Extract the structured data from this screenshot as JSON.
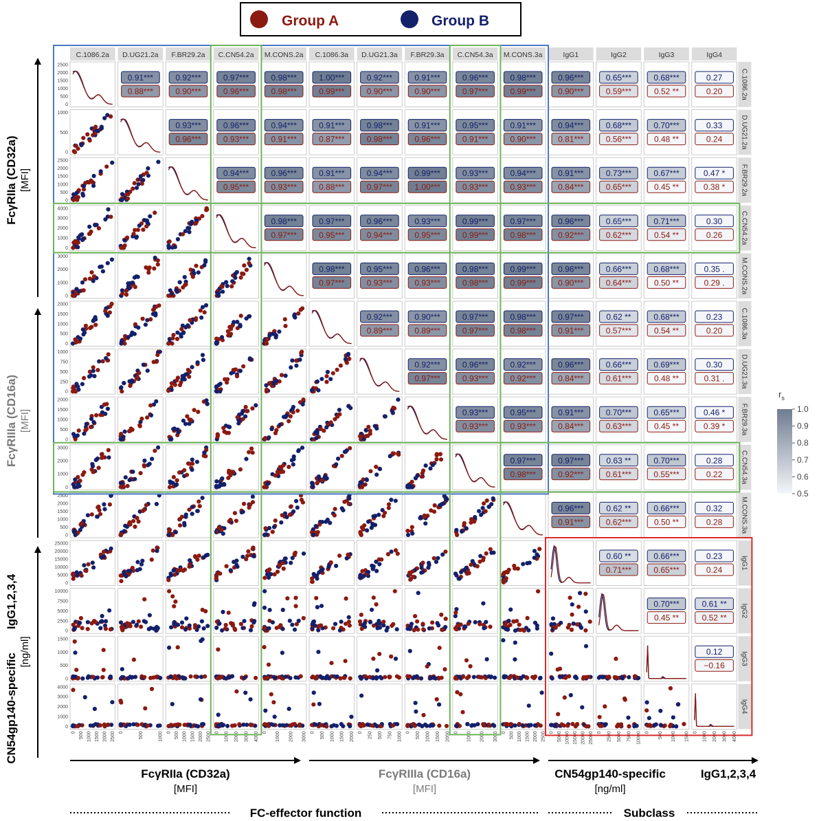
{
  "legend": {
    "items": [
      {
        "label": "Group A",
        "color": "#8b1a10"
      },
      {
        "label": "Group B",
        "color": "#13206b"
      }
    ]
  },
  "colors": {
    "group_a": "#8b1a10",
    "group_b": "#13206b",
    "gray_axis": "#7a7a7a",
    "green_box": "#6db55a",
    "blue_box": "#4a78c8",
    "red_box": "#d92a2a"
  },
  "variables": [
    "C.1086.2a",
    "D.UG21.2a",
    "F.BR29.2a",
    "C.CN54.2a",
    "M.CONS.2a",
    "C.1086.3a",
    "D.UG21.3a",
    "F.BR29.3a",
    "C.CN54.3a",
    "M.CONS.3a",
    "IgG1",
    "IgG2",
    "IgG3",
    "IgG4"
  ],
  "row_axis_ticks": [
    [
      "0",
      "500",
      "1000",
      "1500",
      "2000",
      "2500"
    ],
    [
      "0",
      "500",
      "1000"
    ],
    [
      "0",
      "500",
      "1000",
      "1500",
      "2000",
      "2500"
    ],
    [
      "0",
      "1000",
      "2000",
      "3000",
      "4000"
    ],
    [
      "0",
      "1000",
      "2000",
      "3000"
    ],
    [
      "0",
      "500",
      "1000",
      "1500",
      "2000"
    ],
    [
      "0",
      "250",
      "500",
      "750",
      "1000"
    ],
    [
      "0",
      "500",
      "1000",
      "1500",
      "2000"
    ],
    [
      "0",
      "1000",
      "2000",
      "3000"
    ],
    [
      "0",
      "500",
      "1000",
      "1500",
      "2000",
      "2500"
    ],
    [
      "0",
      "5000",
      "10000",
      "15000",
      "20000",
      "25000"
    ],
    [
      "0",
      "2500",
      "5000",
      "7500",
      "10000"
    ],
    [
      "0",
      "500",
      "1000",
      "1500"
    ],
    [
      "0",
      "1000",
      "2000",
      "3000",
      "4000"
    ]
  ],
  "col_axis_ticks": [
    [
      "0",
      "500",
      "1000",
      "1500",
      "2000",
      "2500"
    ],
    [
      "0",
      "500",
      "1000"
    ],
    [
      "0",
      "500",
      "1000",
      "1500",
      "2000",
      "2500"
    ],
    [
      "0",
      "1000",
      "2000",
      "3000",
      "4000"
    ],
    [
      "0",
      "1000",
      "2000",
      "3000"
    ],
    [
      "0",
      "500",
      "1000",
      "1500",
      "2000"
    ],
    [
      "0",
      "250",
      "500",
      "750",
      "1000"
    ],
    [
      "0",
      "500",
      "1000",
      "1500",
      "2000"
    ],
    [
      "0",
      "1000",
      "2000",
      "3000"
    ],
    [
      "0",
      "500",
      "1000",
      "1500",
      "2000",
      "2500"
    ],
    [
      "0",
      "5000",
      "10000",
      "15000",
      "20000",
      "25000"
    ],
    [
      "0",
      "2500",
      "5000",
      "7500",
      "10000"
    ],
    [
      "0",
      "500",
      "1000",
      "1500"
    ],
    [
      "0",
      "1000",
      "2000",
      "3000",
      "4000"
    ]
  ],
  "chart_data": {
    "type": "scatter",
    "title": "",
    "colorbar": {
      "title": "r_s",
      "ticks": [
        "1.0",
        "0.9",
        "0.8",
        "0.7",
        "0.6",
        "0.5"
      ],
      "range": [
        0.5,
        1.0
      ]
    },
    "correlations": {
      "C.1086.2a|D.UG21.2a": {
        "B": "0.91***",
        "A": "0.88***"
      },
      "C.1086.2a|F.BR29.2a": {
        "B": "0.92***",
        "A": "0.90***"
      },
      "C.1086.2a|C.CN54.2a": {
        "B": "0.97***",
        "A": "0.96***"
      },
      "C.1086.2a|M.CONS.2a": {
        "B": "0.98***",
        "A": "0.98***"
      },
      "C.1086.2a|C.1086.3a": {
        "B": "1.00***",
        "A": "0.99***"
      },
      "C.1086.2a|D.UG21.3a": {
        "B": "0.92***",
        "A": "0.90***"
      },
      "C.1086.2a|F.BR29.3a": {
        "B": "0.91***",
        "A": "0.90***"
      },
      "C.1086.2a|C.CN54.3a": {
        "B": "0.96***",
        "A": "0.97***"
      },
      "C.1086.2a|M.CONS.3a": {
        "B": "0.98***",
        "A": "0.99***"
      },
      "C.1086.2a|IgG1": {
        "B": "0.96***",
        "A": "0.90***"
      },
      "C.1086.2a|IgG2": {
        "B": "0.65***",
        "A": "0.59***"
      },
      "C.1086.2a|IgG3": {
        "B": "0.68***",
        "A": "0.52 **"
      },
      "C.1086.2a|IgG4": {
        "B": "0.27",
        "A": "0.20"
      },
      "D.UG21.2a|F.BR29.2a": {
        "B": "0.93***",
        "A": "0.96***"
      },
      "D.UG21.2a|C.CN54.2a": {
        "B": "0.96***",
        "A": "0.93***"
      },
      "D.UG21.2a|M.CONS.2a": {
        "B": "0.94***",
        "A": "0.91***"
      },
      "D.UG21.2a|C.1086.3a": {
        "B": "0.91***",
        "A": "0.87***"
      },
      "D.UG21.2a|D.UG21.3a": {
        "B": "0.98***",
        "A": "0.98***"
      },
      "D.UG21.2a|F.BR29.3a": {
        "B": "0.91***",
        "A": "0.96***"
      },
      "D.UG21.2a|C.CN54.3a": {
        "B": "0.95***",
        "A": "0.91***"
      },
      "D.UG21.2a|M.CONS.3a": {
        "B": "0.91***",
        "A": "0.90***"
      },
      "D.UG21.2a|IgG1": {
        "B": "0.94***",
        "A": "0.81***"
      },
      "D.UG21.2a|IgG2": {
        "B": "0.68***",
        "A": "0.56***"
      },
      "D.UG21.2a|IgG3": {
        "B": "0.70***",
        "A": "0.48 **"
      },
      "D.UG21.2a|IgG4": {
        "B": "0.33",
        "A": "0.24"
      },
      "F.BR29.2a|C.CN54.2a": {
        "B": "0.94***",
        "A": "0.95***"
      },
      "F.BR29.2a|M.CONS.2a": {
        "B": "0.96***",
        "A": "0.93***"
      },
      "F.BR29.2a|C.1086.3a": {
        "B": "0.91***",
        "A": "0.88***"
      },
      "F.BR29.2a|D.UG21.3a": {
        "B": "0.94***",
        "A": "0.97***"
      },
      "F.BR29.2a|F.BR29.3a": {
        "B": "0.99***",
        "A": "1.00***"
      },
      "F.BR29.2a|C.CN54.3a": {
        "B": "0.93***",
        "A": "0.93***"
      },
      "F.BR29.2a|M.CONS.3a": {
        "B": "0.94***",
        "A": "0.93***"
      },
      "F.BR29.2a|IgG1": {
        "B": "0.91***",
        "A": "0.84***"
      },
      "F.BR29.2a|IgG2": {
        "B": "0.73***",
        "A": "0.65***"
      },
      "F.BR29.2a|IgG3": {
        "B": "0.67***",
        "A": "0.45 **"
      },
      "F.BR29.2a|IgG4": {
        "B": "0.47  *",
        "A": "0.38  *"
      },
      "C.CN54.2a|M.CONS.2a": {
        "B": "0.98***",
        "A": "0.97***"
      },
      "C.CN54.2a|C.1086.3a": {
        "B": "0.97***",
        "A": "0.95***"
      },
      "C.CN54.2a|D.UG21.3a": {
        "B": "0.96***",
        "A": "0.94***"
      },
      "C.CN54.2a|F.BR29.3a": {
        "B": "0.93***",
        "A": "0.95***"
      },
      "C.CN54.2a|C.CN54.3a": {
        "B": "0.99***",
        "A": "0.99***"
      },
      "C.CN54.2a|M.CONS.3a": {
        "B": "0.97***",
        "A": "0.98***"
      },
      "C.CN54.2a|IgG1": {
        "B": "0.96***",
        "A": "0.92***"
      },
      "C.CN54.2a|IgG2": {
        "B": "0.65***",
        "A": "0.62***"
      },
      "C.CN54.2a|IgG3": {
        "B": "0.71***",
        "A": "0.54 **"
      },
      "C.CN54.2a|IgG4": {
        "B": "0.30",
        "A": "0.26"
      },
      "M.CONS.2a|C.1086.3a": {
        "B": "0.98***",
        "A": "0.97***"
      },
      "M.CONS.2a|D.UG21.3a": {
        "B": "0.95***",
        "A": "0.93***"
      },
      "M.CONS.2a|F.BR29.3a": {
        "B": "0.96***",
        "A": "0.93***"
      },
      "M.CONS.2a|C.CN54.3a": {
        "B": "0.98***",
        "A": "0.98***"
      },
      "M.CONS.2a|M.CONS.3a": {
        "B": "0.99***",
        "A": "0.99***"
      },
      "M.CONS.2a|IgG1": {
        "B": "0.96***",
        "A": "0.90***"
      },
      "M.CONS.2a|IgG2": {
        "B": "0.66***",
        "A": "0.64***"
      },
      "M.CONS.2a|IgG3": {
        "B": "0.68***",
        "A": "0.50 **"
      },
      "M.CONS.2a|IgG4": {
        "B": "0.35  .",
        "A": "0.29  ."
      },
      "C.1086.3a|D.UG21.3a": {
        "B": "0.92***",
        "A": "0.89***"
      },
      "C.1086.3a|F.BR29.3a": {
        "B": "0.90***",
        "A": "0.89***"
      },
      "C.1086.3a|C.CN54.3a": {
        "B": "0.97***",
        "A": "0.97***"
      },
      "C.1086.3a|M.CONS.3a": {
        "B": "0.98***",
        "A": "0.98***"
      },
      "C.1086.3a|IgG1": {
        "B": "0.97***",
        "A": "0.91***"
      },
      "C.1086.3a|IgG2": {
        "B": "0.62 **",
        "A": "0.57***"
      },
      "C.1086.3a|IgG3": {
        "B": "0.68***",
        "A": "0.54 **"
      },
      "C.1086.3a|IgG4": {
        "B": "0.23",
        "A": "0.20"
      },
      "D.UG21.3a|F.BR29.3a": {
        "B": "0.92***",
        "A": "0.97***"
      },
      "D.UG21.3a|C.CN54.3a": {
        "B": "0.96***",
        "A": "0.93***"
      },
      "D.UG21.3a|M.CONS.3a": {
        "B": "0.92***",
        "A": "0.92***"
      },
      "D.UG21.3a|IgG1": {
        "B": "0.96***",
        "A": "0.84***"
      },
      "D.UG21.3a|IgG2": {
        "B": "0.66***",
        "A": "0.61***"
      },
      "D.UG21.3a|IgG3": {
        "B": "0.69***",
        "A": "0.48 **"
      },
      "D.UG21.3a|IgG4": {
        "B": "0.30",
        "A": "0.31  ."
      },
      "F.BR29.3a|C.CN54.3a": {
        "B": "0.93***",
        "A": "0.93***"
      },
      "F.BR29.3a|M.CONS.3a": {
        "B": "0.95***",
        "A": "0.93***"
      },
      "F.BR29.3a|IgG1": {
        "B": "0.91***",
        "A": "0.84***"
      },
      "F.BR29.3a|IgG2": {
        "B": "0.70***",
        "A": "0.63***"
      },
      "F.BR29.3a|IgG3": {
        "B": "0.65***",
        "A": "0.45 **"
      },
      "F.BR29.3a|IgG4": {
        "B": "0.46  *",
        "A": "0.39  *"
      },
      "C.CN54.3a|M.CONS.3a": {
        "B": "0.97***",
        "A": "0.98***"
      },
      "C.CN54.3a|IgG1": {
        "B": "0.97***",
        "A": "0.92***"
      },
      "C.CN54.3a|IgG2": {
        "B": "0.63 **",
        "A": "0.61***"
      },
      "C.CN54.3a|IgG3": {
        "B": "0.70***",
        "A": "0.55***"
      },
      "C.CN54.3a|IgG4": {
        "B": "0.28",
        "A": "0.22"
      },
      "M.CONS.3a|IgG1": {
        "B": "0.96***",
        "A": "0.91***"
      },
      "M.CONS.3a|IgG2": {
        "B": "0.62 **",
        "A": "0.62***"
      },
      "M.CONS.3a|IgG3": {
        "B": "0.66***",
        "A": "0.50 **"
      },
      "M.CONS.3a|IgG4": {
        "B": "0.32",
        "A": "0.28"
      },
      "IgG1|IgG2": {
        "B": "0.60 **",
        "A": "0.71***"
      },
      "IgG1|IgG3": {
        "B": "0.66***",
        "A": "0.65***"
      },
      "IgG1|IgG4": {
        "B": "0.23",
        "A": "0.24"
      },
      "IgG2|IgG3": {
        "B": "0.70***",
        "A": "0.45 **"
      },
      "IgG2|IgG4": {
        "B": "0.61 **",
        "A": "0.52 **"
      },
      "IgG3|IgG4": {
        "B": "0.12",
        "A": "−0.16"
      }
    }
  },
  "axes": {
    "y_top": {
      "line1": "FcγRIIa (CD32a)",
      "line2": "[MFI]"
    },
    "y_mid": {
      "line1": "FcγRIIIa (CD16a)",
      "line2": "[MFI]"
    },
    "y_bot": {
      "line1a": "IgG1,2,3,4",
      "line1b": "CN54gp140-specific",
      "line2": "[ng/ml]"
    },
    "x_left": {
      "line1": "FcγRIIa (CD32a)",
      "line2": "[MFI]"
    },
    "x_mid": {
      "line1": "FcγRIIIa (CD16a)",
      "line2": "[MFI]"
    },
    "x_right": {
      "line1a": "CN54gp140-specific",
      "line1b": "IgG1,2,3,4",
      "line2": "[ng/ml]"
    }
  },
  "bottom": {
    "effector": "FC-effector function",
    "subclass": "Subclass"
  }
}
